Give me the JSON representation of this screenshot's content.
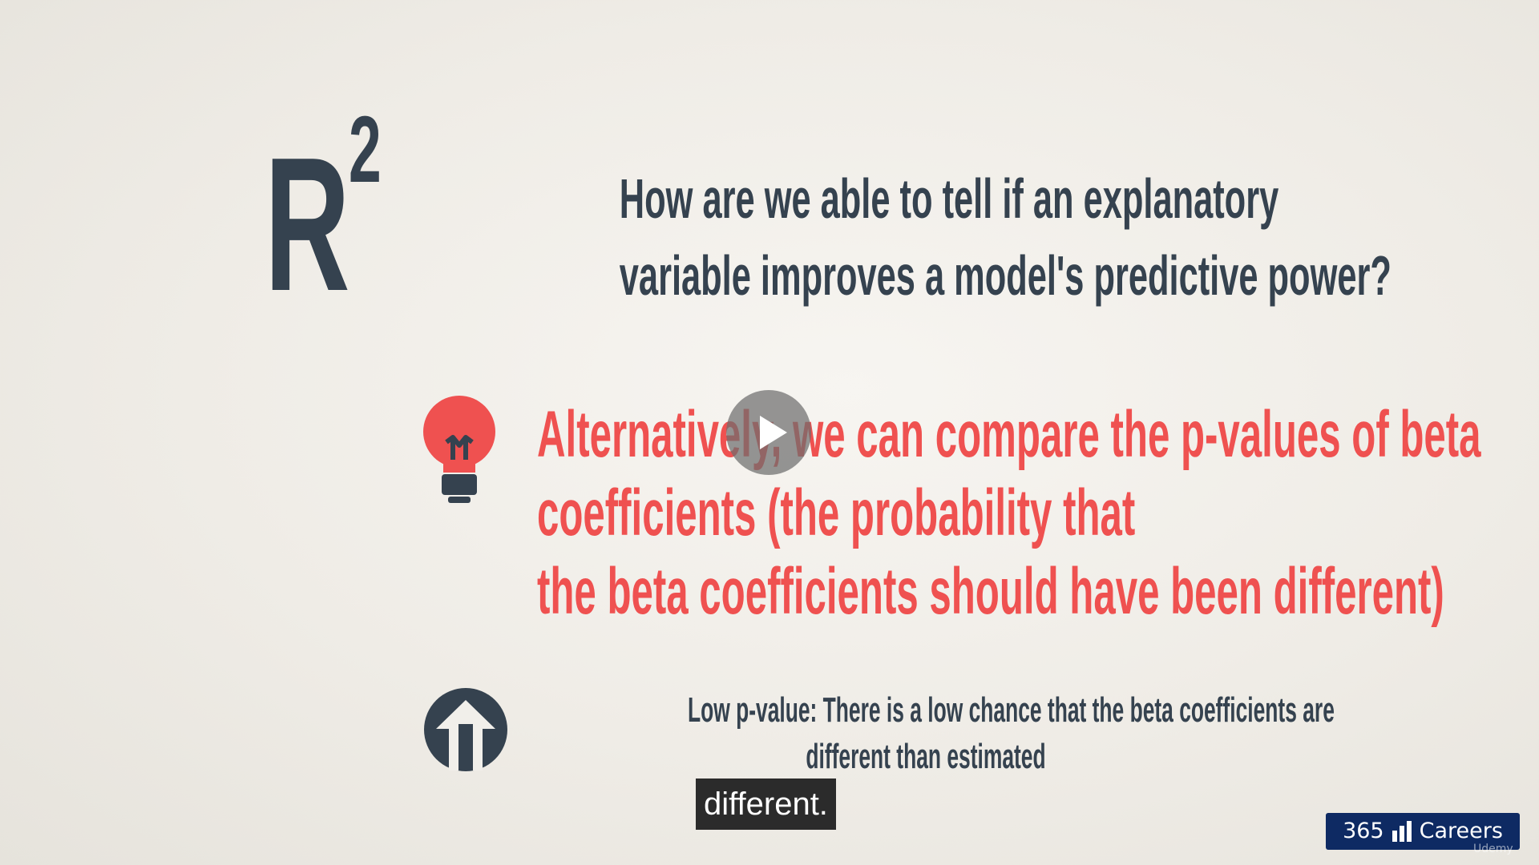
{
  "slide": {
    "r_symbol": "R",
    "r_exponent": "2",
    "question_lines": [
      "How are we able to tell if an explanatory",
      "variable improves a model's predictive power?"
    ],
    "statement_lines": [
      "Alternatively, we can compare the p-values of beta",
      "coefficients (the probability that",
      "the beta coefficients should have been different)"
    ],
    "note_lines": [
      "Low p-value: There is a low chance that the beta coefficients are",
      "different than estimated"
    ],
    "icons": {
      "idea": "lightbulb-icon",
      "up": "up-arrow-icon"
    },
    "colors": {
      "text_dark": "#35424f",
      "accent_red": "#ef5150"
    }
  },
  "player": {
    "caption": "different.",
    "play_icon": "play-icon"
  },
  "brand": {
    "number": "365",
    "name": "Careers",
    "watermark": "Udemy",
    "color": "#0e2a63"
  }
}
